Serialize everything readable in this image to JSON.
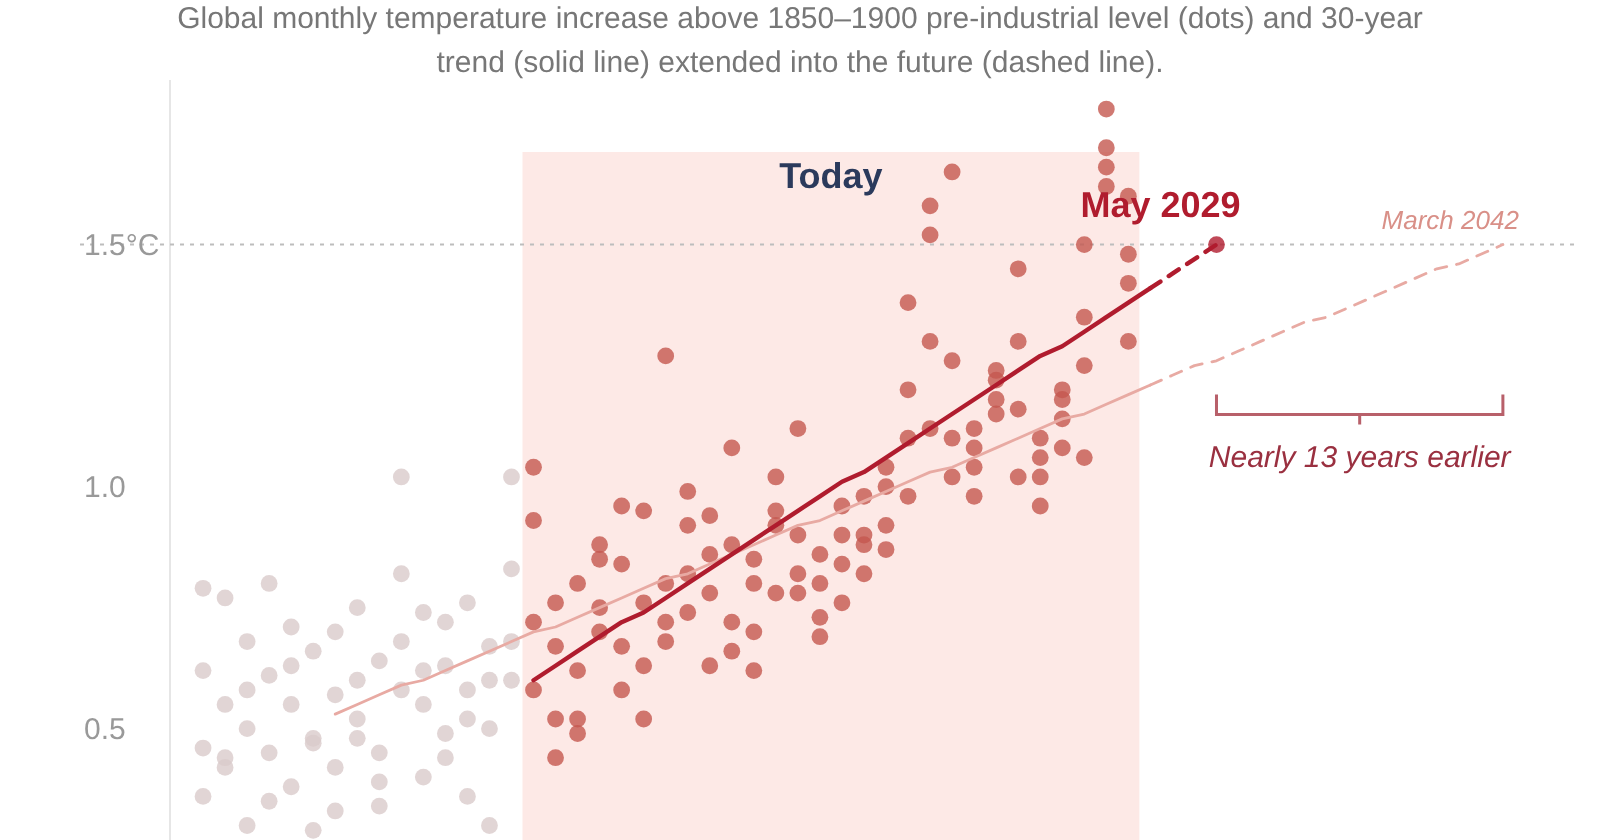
{
  "chart_data": {
    "type": "scatter",
    "subtitle": "Global monthly temperature increase above 1850–1900 pre-industrial level (dots) and 30-year trend (solid line) extended into the future (dashed line).",
    "categories": [
      null,
      null,
      null,
      null,
      null,
      null,
      null,
      null,
      null,
      null,
      null,
      null,
      null,
      null,
      null,
      null,
      null,
      null,
      null,
      null,
      null,
      null,
      null,
      null,
      null,
      null,
      null,
      null,
      null,
      null,
      null,
      null,
      null,
      null,
      null,
      null,
      null,
      null,
      null,
      null,
      null,
      null,
      null,
      null,
      null,
      null,
      null,
      null,
      null,
      null,
      null,
      null,
      null,
      null,
      null,
      null,
      null,
      null,
      null,
      null,
      null,
      null,
      null,
      null
    ],
    "ylim": [
      0.27,
      1.84
    ],
    "yticks": [
      0.5,
      {
        "value": 1,
        "label": "1.0"
      },
      {
        "value": 1.5,
        "label": "1.5°C"
      }
    ],
    "tick_labels": "y",
    "marker": "circle",
    "ref_lines": [
      {
        "axis": "y",
        "value": 1.5,
        "color": "#bdbdbd",
        "line_style": "dotted"
      }
    ],
    "annotations": [
      "Today",
      "May 2029",
      "March 2042",
      "Nearly 13 years earlier"
    ],
    "series": [
      {
        "type": "scatter",
        "color": "#d9cbca",
        "values": [
          null,
          0.46,
          0.55,
          0.3,
          0.35,
          0.71,
          0.48,
          0.42,
          0.6,
          0.64,
          0.58,
          0.62,
          0.72,
          0.76,
          0.3,
          0.83,
          null,
          null,
          null,
          null,
          null,
          null,
          null,
          null,
          null,
          null,
          null,
          null,
          null,
          null,
          null,
          null,
          null,
          null,
          null,
          null,
          null,
          null,
          null,
          null,
          null,
          null,
          null,
          null,
          null,
          null,
          null,
          null,
          null,
          null,
          null,
          null,
          null,
          null,
          null,
          null,
          null,
          null,
          null,
          null,
          null,
          null,
          null,
          null
        ]
      },
      {
        "type": "scatter",
        "color": "#d9cbca",
        "values": [
          null,
          0.79,
          0.77,
          0.68,
          0.61,
          0.38,
          0.29,
          0.57,
          0.75,
          0.45,
          0.82,
          0.4,
          0.49,
          0.58,
          0.6,
          1.02,
          null,
          null,
          null,
          null,
          null,
          null,
          null,
          null,
          null,
          null,
          null,
          null,
          null,
          null,
          null,
          null,
          null,
          null,
          null,
          null,
          null,
          null,
          null,
          null,
          null,
          null,
          null,
          null,
          null,
          null,
          null,
          null,
          null,
          null,
          null,
          null,
          null,
          null,
          null,
          null,
          null,
          null,
          null,
          null,
          null,
          null,
          null,
          null
        ]
      },
      {
        "type": "scatter",
        "color": "#d9cbca",
        "values": [
          null,
          0.62,
          0.42,
          0.5,
          0.8,
          0.55,
          0.66,
          0.33,
          0.52,
          0.34,
          1.02,
          0.55,
          0.63,
          0.36,
          0.5,
          0.68,
          null,
          null,
          null,
          null,
          null,
          null,
          null,
          null,
          null,
          null,
          null,
          null,
          null,
          null,
          null,
          null,
          null,
          null,
          null,
          null,
          null,
          null,
          null,
          null,
          null,
          null,
          null,
          null,
          null,
          null,
          null,
          null,
          null,
          null,
          null,
          null,
          null,
          null,
          null,
          null,
          null,
          null,
          null,
          null,
          null,
          null,
          null,
          null
        ]
      },
      {
        "type": "scatter",
        "color": "#d9cbca",
        "values": [
          null,
          0.36,
          0.44,
          0.58,
          0.45,
          0.63,
          0.47,
          0.7,
          0.48,
          0.39,
          0.68,
          0.74,
          0.44,
          0.52,
          0.67,
          0.6,
          null,
          null,
          null,
          null,
          null,
          null,
          null,
          null,
          null,
          null,
          null,
          null,
          null,
          null,
          null,
          null,
          null,
          null,
          null,
          null,
          null,
          null,
          null,
          null,
          null,
          null,
          null,
          null,
          null,
          null,
          null,
          null,
          null,
          null,
          null,
          null,
          null,
          null,
          null,
          null,
          null,
          null,
          null,
          null,
          null,
          null,
          null,
          null
        ]
      },
      {
        "type": "scatter",
        "color": "#c4574f",
        "values": [
          null,
          null,
          null,
          null,
          null,
          null,
          null,
          null,
          null,
          null,
          null,
          null,
          null,
          null,
          null,
          null,
          0.58,
          0.52,
          0.62,
          0.7,
          0.96,
          0.76,
          0.8,
          0.92,
          0.86,
          1.08,
          0.62,
          0.92,
          1.12,
          0.73,
          0.76,
          0.88,
          0.92,
          0.98,
          1.52,
          1.26,
          1.08,
          1.22,
          1.45,
          1.06,
          1.14,
          1.06,
          1.62,
          1.48,
          null,
          null,
          null,
          null,
          null,
          null,
          null,
          null,
          null,
          null,
          null,
          null,
          null,
          null,
          null,
          null,
          null,
          null,
          null,
          null
        ]
      },
      {
        "type": "scatter",
        "color": "#c4574f",
        "values": [
          null,
          null,
          null,
          null,
          null,
          null,
          null,
          null,
          null,
          null,
          null,
          null,
          null,
          null,
          null,
          null,
          0.72,
          0.44,
          0.8,
          0.88,
          0.84,
          0.52,
          0.72,
          0.82,
          0.63,
          0.88,
          0.8,
          0.78,
          0.9,
          0.86,
          0.9,
          0.98,
          1.0,
          1.1,
          1.58,
          1.1,
          0.98,
          1.18,
          1.3,
          0.96,
          1.08,
          1.25,
          1.78,
          1.6,
          null,
          null,
          null,
          null,
          null,
          null,
          null,
          null,
          null,
          null,
          null,
          null,
          null,
          null,
          null,
          null,
          null,
          null,
          null,
          null
        ]
      },
      {
        "type": "scatter",
        "color": "#c4574f",
        "values": [
          null,
          null,
          null,
          null,
          null,
          null,
          null,
          null,
          null,
          null,
          null,
          null,
          null,
          null,
          null,
          null,
          1.04,
          0.76,
          0.52,
          0.75,
          0.67,
          0.63,
          1.27,
          0.99,
          0.78,
          0.72,
          0.85,
          1.02,
          0.82,
          0.8,
          0.96,
          0.9,
          1.04,
          1.2,
          1.3,
          1.02,
          1.04,
          1.24,
          1.16,
          1.1,
          1.18,
          1.5,
          1.7,
          1.42,
          null,
          null,
          null,
          null,
          null,
          null,
          null,
          null,
          null,
          null,
          null,
          null,
          null,
          null,
          null,
          null,
          null,
          null,
          null,
          null
        ]
      },
      {
        "type": "scatter",
        "color": "#c4574f",
        "values": [
          null,
          null,
          null,
          null,
          null,
          null,
          null,
          null,
          null,
          null,
          null,
          null,
          null,
          null,
          null,
          null,
          0.93,
          0.67,
          0.49,
          0.85,
          0.58,
          0.95,
          0.68,
          0.74,
          0.94,
          0.66,
          0.7,
          0.95,
          0.78,
          0.69,
          0.84,
          0.82,
          0.87,
          1.38,
          1.12,
          1.65,
          1.12,
          1.15,
          1.02,
          1.02,
          1.2,
          1.35,
          1.66,
          1.3,
          null,
          null,
          null,
          null,
          null,
          null,
          null,
          null,
          null,
          null,
          null,
          null,
          null,
          null,
          null,
          null,
          null,
          null,
          null,
          null
        ]
      },
      {
        "type": "line",
        "color": "#e8aaa3",
        "line_style": "solid",
        "marker": "none",
        "values": [
          null,
          null,
          null,
          null,
          null,
          null,
          null,
          0.53,
          0.55,
          0.57,
          0.59,
          0.6,
          0.62,
          0.64,
          0.66,
          0.68,
          0.7,
          0.71,
          0.73,
          0.75,
          0.77,
          0.79,
          0.81,
          0.82,
          0.84,
          0.86,
          0.88,
          0.9,
          0.92,
          0.93,
          0.95,
          0.97,
          0.99,
          1.01,
          1.03,
          1.04,
          1.06,
          1.08,
          1.1,
          1.12,
          1.14,
          1.15,
          1.17,
          1.19,
          1.21,
          null,
          null,
          null,
          null,
          null,
          null,
          null,
          null,
          null,
          null,
          null,
          null,
          null,
          null,
          null,
          null,
          null,
          null,
          null
        ]
      },
      {
        "type": "line",
        "color": "#e8aaa3",
        "line_style": "dashed",
        "marker": "none",
        "values": [
          null,
          null,
          null,
          null,
          null,
          null,
          null,
          null,
          null,
          null,
          null,
          null,
          null,
          null,
          null,
          null,
          null,
          null,
          null,
          null,
          null,
          null,
          null,
          null,
          null,
          null,
          null,
          null,
          null,
          null,
          null,
          null,
          null,
          null,
          null,
          null,
          null,
          null,
          null,
          null,
          null,
          null,
          null,
          null,
          1.21,
          1.23,
          1.25,
          1.26,
          1.28,
          1.3,
          1.32,
          1.34,
          1.35,
          1.37,
          1.39,
          1.41,
          1.43,
          1.45,
          1.46,
          1.48,
          1.5,
          null,
          null,
          null
        ]
      },
      {
        "type": "line",
        "color": "#b01c2e",
        "line_style": "solid",
        "marker": "none",
        "values": [
          null,
          null,
          null,
          null,
          null,
          null,
          null,
          null,
          null,
          null,
          null,
          null,
          null,
          null,
          null,
          null,
          0.6,
          0.63,
          0.66,
          0.69,
          0.72,
          0.74,
          0.77,
          0.8,
          0.83,
          0.86,
          0.89,
          0.92,
          0.95,
          0.98,
          1.01,
          1.03,
          1.06,
          1.09,
          1.12,
          1.15,
          1.18,
          1.21,
          1.24,
          1.27,
          1.29,
          1.32,
          1.35,
          1.38,
          1.41,
          null,
          null,
          null,
          null,
          null,
          null,
          null,
          null,
          null,
          null,
          null,
          null,
          null,
          null,
          null,
          null,
          null,
          null,
          null
        ]
      },
      {
        "type": "line",
        "color": "#b01c2e",
        "line_style": "dashed",
        "marker": "none",
        "values": [
          null,
          null,
          null,
          null,
          null,
          null,
          null,
          null,
          null,
          null,
          null,
          null,
          null,
          null,
          null,
          null,
          null,
          null,
          null,
          null,
          null,
          null,
          null,
          null,
          null,
          null,
          null,
          null,
          null,
          null,
          null,
          null,
          null,
          null,
          null,
          null,
          null,
          null,
          null,
          null,
          null,
          null,
          null,
          null,
          1.41,
          1.44,
          1.47,
          1.5,
          null,
          null,
          null,
          null,
          null,
          null,
          null,
          null,
          null,
          null,
          null,
          null,
          null,
          null,
          null,
          null
        ]
      },
      {
        "type": "scatter",
        "color": "#b01c2e",
        "values": [
          null,
          null,
          null,
          null,
          null,
          null,
          null,
          null,
          null,
          null,
          null,
          null,
          null,
          null,
          null,
          null,
          null,
          null,
          null,
          null,
          null,
          null,
          null,
          null,
          null,
          null,
          null,
          null,
          null,
          null,
          null,
          null,
          null,
          null,
          null,
          null,
          null,
          null,
          null,
          null,
          null,
          null,
          null,
          null,
          null,
          null,
          null,
          1.5,
          null,
          null,
          null,
          null,
          null,
          null,
          null,
          null,
          null,
          null,
          null,
          null,
          null,
          null,
          null,
          null
        ]
      }
    ]
  }
}
